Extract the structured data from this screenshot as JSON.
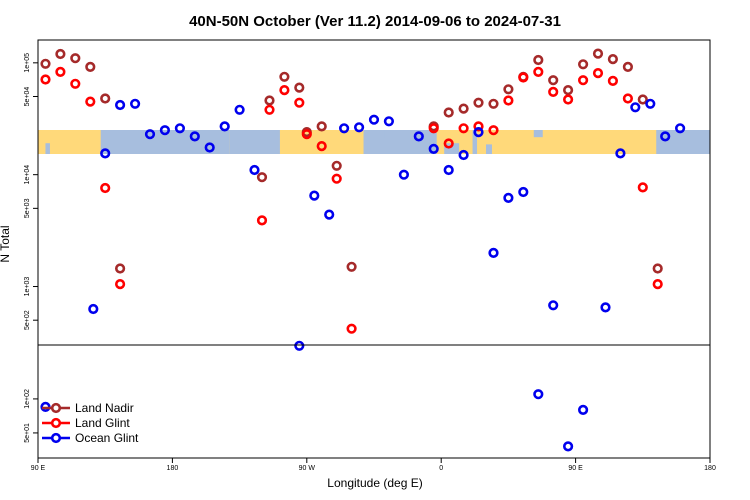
{
  "title": "40N-50N October (Ver 11.2)   2014-09-06 to 2024-07-31",
  "xlabel": "Longitude (deg E)",
  "ylabel": "N Total",
  "x_ticks": [
    {
      "value": 90,
      "label": "90 E"
    },
    {
      "value": 180,
      "label": "180"
    },
    {
      "value": 270,
      "label": "90 W"
    },
    {
      "value": 360,
      "label": "0"
    },
    {
      "value": 450,
      "label": "90 E"
    },
    {
      "value": 540,
      "label": "180"
    }
  ],
  "y_ticks_upper": [
    {
      "value": 100000,
      "label": "1e+05"
    },
    {
      "value": 50000,
      "label": "5e+04"
    },
    {
      "value": 10000,
      "label": "1e+04"
    },
    {
      "value": 5000,
      "label": "5e+03"
    },
    {
      "value": 1000,
      "label": "1e+03"
    },
    {
      "value": 500,
      "label": "5e+02"
    }
  ],
  "y_ticks_lower": [
    {
      "value": 100,
      "label": "1e+02"
    },
    {
      "value": 50,
      "label": "5e+01"
    }
  ],
  "colors": {
    "land_nadir": "#a52a2a",
    "land_glint": "#ff0000",
    "ocean_glint": "#0000ee",
    "map_land": "#ffd97a",
    "map_ocean": "#a7bede"
  },
  "chart_data": {
    "type": "scatter",
    "title": "40N-50N October (Ver 11.2)   2014-09-06 to 2024-07-31",
    "xlabel": "Longitude (deg E)",
    "ylabel": "N Total",
    "x_units": "degrees longitude, continuous from 90 E eastward through 180 and 0 back to 180",
    "xlim": [
      90,
      540
    ],
    "y_scale": "log",
    "panels": [
      {
        "name": "upper",
        "ylim": [
          300,
          160000
        ]
      },
      {
        "name": "lower",
        "ylim": [
          30,
          300
        ]
      }
    ],
    "legend_position": "bottom-left",
    "grid": false,
    "series": [
      {
        "name": "Land Nadir",
        "color": "#a52a2a",
        "points": [
          [
            95,
            98000
          ],
          [
            105,
            120000
          ],
          [
            115,
            110000
          ],
          [
            125,
            92000
          ],
          [
            135,
            48000
          ],
          [
            145,
            1450
          ],
          [
            240,
            9500
          ],
          [
            245,
            46000
          ],
          [
            255,
            75000
          ],
          [
            265,
            60000
          ],
          [
            270,
            24000
          ],
          [
            280,
            27000
          ],
          [
            290,
            12000
          ],
          [
            300,
            1500
          ],
          [
            355,
            27000
          ],
          [
            365,
            36000
          ],
          [
            375,
            39000
          ],
          [
            385,
            44000
          ],
          [
            395,
            43000
          ],
          [
            405,
            58000
          ],
          [
            415,
            75000
          ],
          [
            425,
            106000
          ],
          [
            435,
            70000
          ],
          [
            445,
            57000
          ],
          [
            455,
            97000
          ],
          [
            465,
            121000
          ],
          [
            475,
            108000
          ],
          [
            485,
            92000
          ],
          [
            495,
            47000
          ],
          [
            505,
            1450
          ]
        ]
      },
      {
        "name": "Land Glint",
        "color": "#ff0000",
        "points": [
          [
            95,
            71000
          ],
          [
            105,
            83000
          ],
          [
            115,
            65000
          ],
          [
            125,
            45000
          ],
          [
            135,
            7600
          ],
          [
            145,
            1050
          ],
          [
            240,
            3900
          ],
          [
            245,
            38000
          ],
          [
            255,
            57000
          ],
          [
            265,
            44000
          ],
          [
            270,
            23000
          ],
          [
            280,
            18000
          ],
          [
            290,
            9200
          ],
          [
            300,
            420
          ],
          [
            355,
            26000
          ],
          [
            365,
            19000
          ],
          [
            375,
            26000
          ],
          [
            385,
            27000
          ],
          [
            395,
            25000
          ],
          [
            405,
            46000
          ],
          [
            415,
            74000
          ],
          [
            425,
            83000
          ],
          [
            435,
            55000
          ],
          [
            445,
            47000
          ],
          [
            455,
            70000
          ],
          [
            465,
            81000
          ],
          [
            475,
            69000
          ],
          [
            485,
            48000
          ],
          [
            495,
            7700
          ],
          [
            505,
            1050
          ]
        ]
      },
      {
        "name": "Ocean Glint",
        "color": "#0000ee",
        "points": [
          [
            95,
            85
          ],
          [
            127,
            630
          ],
          [
            135,
            15500
          ],
          [
            145,
            42000
          ],
          [
            155,
            43000
          ],
          [
            165,
            23000
          ],
          [
            175,
            25000
          ],
          [
            185,
            26000
          ],
          [
            195,
            22000
          ],
          [
            205,
            17500
          ],
          [
            215,
            27000
          ],
          [
            225,
            38000
          ],
          [
            235,
            11000
          ],
          [
            265,
            295
          ],
          [
            275,
            6500
          ],
          [
            285,
            4400
          ],
          [
            295,
            26000
          ],
          [
            305,
            26500
          ],
          [
            315,
            31000
          ],
          [
            325,
            30000
          ],
          [
            335,
            10000
          ],
          [
            345,
            22000
          ],
          [
            355,
            17000
          ],
          [
            365,
            11000
          ],
          [
            375,
            15000
          ],
          [
            385,
            24000
          ],
          [
            395,
            2000
          ],
          [
            405,
            6200
          ],
          [
            415,
            7000
          ],
          [
            425,
            110
          ],
          [
            435,
            680
          ],
          [
            445,
            38
          ],
          [
            455,
            80
          ],
          [
            470,
            650
          ],
          [
            480,
            15500
          ],
          [
            490,
            40000
          ],
          [
            500,
            43000
          ],
          [
            510,
            22000
          ],
          [
            520,
            26000
          ]
        ]
      }
    ]
  }
}
